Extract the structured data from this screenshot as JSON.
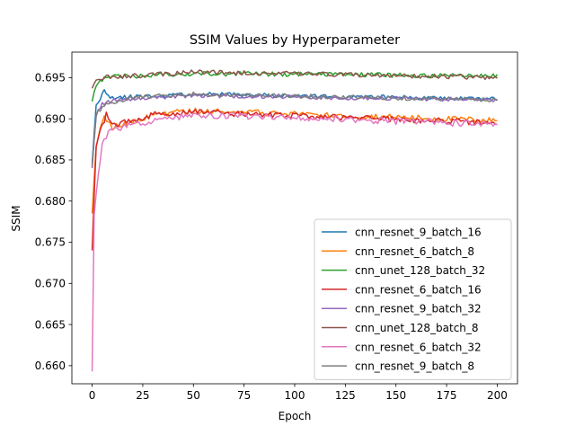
{
  "chart_data": {
    "type": "line",
    "title": "SSIM Values by Hyperparameter",
    "xlabel": "Epoch",
    "ylabel": "SSIM",
    "xlim": [
      -10,
      210
    ],
    "ylim": [
      0.6578,
      0.6981
    ],
    "xticks": [
      0,
      25,
      50,
      75,
      100,
      125,
      150,
      175,
      200
    ],
    "yticks": [
      0.66,
      0.665,
      0.67,
      0.675,
      0.68,
      0.685,
      0.69,
      0.695
    ],
    "ytick_labels": [
      "0.660",
      "0.665",
      "0.670",
      "0.675",
      "0.680",
      "0.685",
      "0.690",
      "0.695"
    ],
    "grid": false,
    "legend_position": "lower right",
    "series": [
      {
        "name": "cnn_resnet_9_batch_16",
        "color": "#1f77b4",
        "start": 0.6845,
        "early": [
          [
            2,
            0.6915
          ],
          [
            4,
            0.6925
          ],
          [
            6,
            0.6935
          ],
          [
            8,
            0.693
          ],
          [
            10,
            0.6925
          ],
          [
            15,
            0.6926
          ]
        ],
        "plateau": 0.693,
        "end": 0.6924,
        "noise": 0.00025,
        "seed": 11
      },
      {
        "name": "cnn_resnet_6_batch_8",
        "color": "#ff7f0e",
        "start": 0.6785,
        "early": [
          [
            2,
            0.6865
          ],
          [
            4,
            0.6892
          ],
          [
            6,
            0.6902
          ],
          [
            10,
            0.689
          ],
          [
            20,
            0.6895
          ],
          [
            30,
            0.6905
          ]
        ],
        "plateau": 0.691,
        "end": 0.6898,
        "noise": 0.00035,
        "seed": 22
      },
      {
        "name": "cnn_unet_128_batch_32",
        "color": "#2ca02c",
        "start": 0.6921,
        "early": [
          [
            2,
            0.694
          ],
          [
            5,
            0.6948
          ],
          [
            10,
            0.6951
          ],
          [
            20,
            0.6952
          ]
        ],
        "plateau": 0.6955,
        "end": 0.6952,
        "noise": 0.00028,
        "seed": 33
      },
      {
        "name": "cnn_resnet_6_batch_16",
        "color": "#d62728",
        "start": 0.674,
        "early": [
          [
            2,
            0.6868
          ],
          [
            4,
            0.6885
          ],
          [
            7,
            0.6905
          ],
          [
            10,
            0.6892
          ],
          [
            20,
            0.6898
          ],
          [
            30,
            0.6905
          ]
        ],
        "plateau": 0.6908,
        "end": 0.6895,
        "noise": 0.00035,
        "seed": 44
      },
      {
        "name": "cnn_resnet_9_batch_32",
        "color": "#9467bd",
        "start": 0.684,
        "early": [
          [
            2,
            0.6905
          ],
          [
            5,
            0.6918
          ],
          [
            10,
            0.6922
          ],
          [
            20,
            0.6924
          ]
        ],
        "plateau": 0.6928,
        "end": 0.6923,
        "noise": 0.00025,
        "seed": 55
      },
      {
        "name": "cnn_unet_128_batch_8",
        "color": "#8c564b",
        "start": 0.6937,
        "early": [
          [
            2,
            0.6945
          ],
          [
            5,
            0.695
          ],
          [
            10,
            0.6951
          ],
          [
            20,
            0.6952
          ]
        ],
        "plateau": 0.6957,
        "end": 0.695,
        "noise": 0.00028,
        "seed": 66
      },
      {
        "name": "cnn_resnet_6_batch_32",
        "color": "#e377c2",
        "start": 0.6593,
        "early": [
          [
            1,
            0.678
          ],
          [
            3,
            0.6835
          ],
          [
            5,
            0.687
          ],
          [
            8,
            0.6885
          ],
          [
            12,
            0.6888
          ],
          [
            25,
            0.6895
          ]
        ],
        "plateau": 0.6905,
        "end": 0.6893,
        "noise": 0.0004,
        "seed": 77
      },
      {
        "name": "cnn_resnet_9_batch_8",
        "color": "#7f7f7f",
        "start": 0.6843,
        "early": [
          [
            2,
            0.6905
          ],
          [
            5,
            0.6915
          ],
          [
            10,
            0.692
          ],
          [
            20,
            0.6926
          ]
        ],
        "plateau": 0.693,
        "end": 0.6923,
        "noise": 0.00025,
        "seed": 88
      }
    ]
  }
}
